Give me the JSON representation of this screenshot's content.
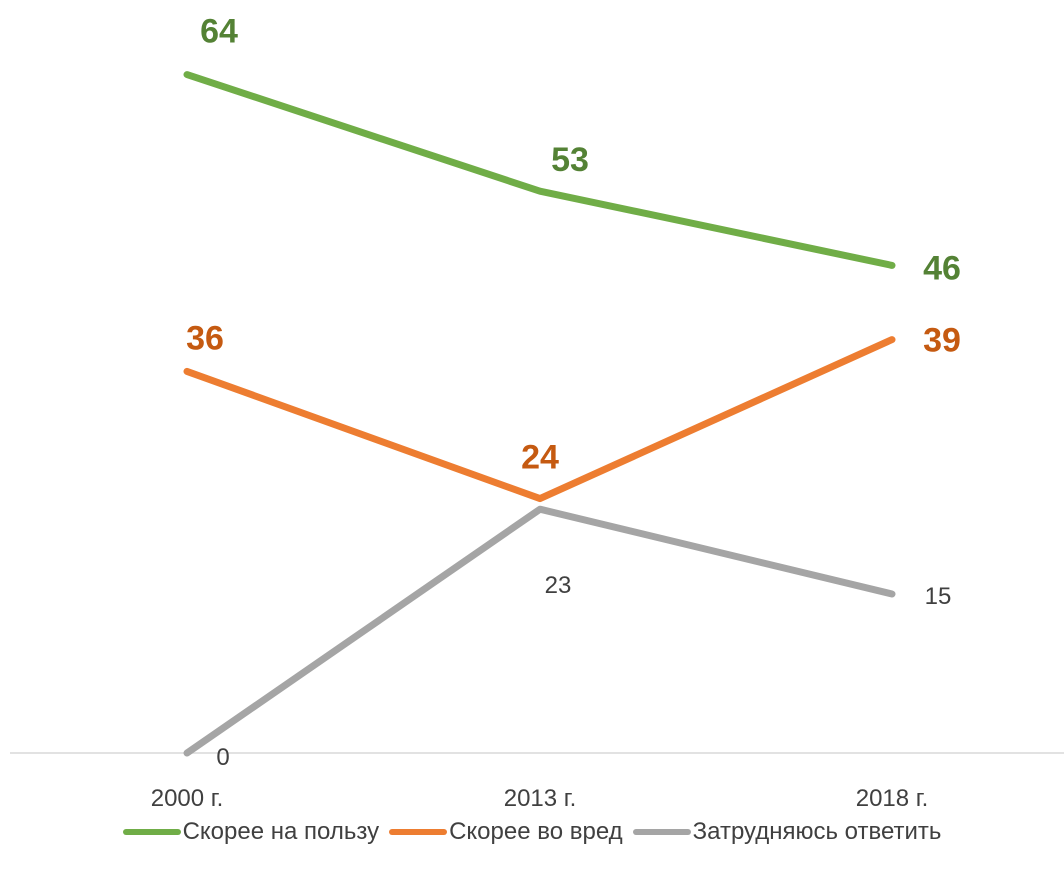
{
  "chart_data": {
    "type": "line",
    "categories": [
      "2000 г.",
      "2013 г.",
      "2018 г."
    ],
    "series": [
      {
        "name": "Скорее на пользу",
        "values": [
          64,
          53,
          46
        ],
        "color": "#70ad47",
        "label_color": "#548235",
        "label_bold": true
      },
      {
        "name": "Скорее во вред",
        "values": [
          36,
          24,
          39
        ],
        "color": "#ed7d31",
        "label_color": "#c55a11",
        "label_bold": true
      },
      {
        "name": "Затрудняюсь ответить",
        "values": [
          0,
          23,
          15
        ],
        "color": "#a5a5a5",
        "label_color": "#404040",
        "label_bold": false
      }
    ],
    "title": "",
    "xlabel": "",
    "ylabel": "",
    "ylim": [
      0,
      70
    ],
    "grid": false,
    "legend": "bottom"
  }
}
